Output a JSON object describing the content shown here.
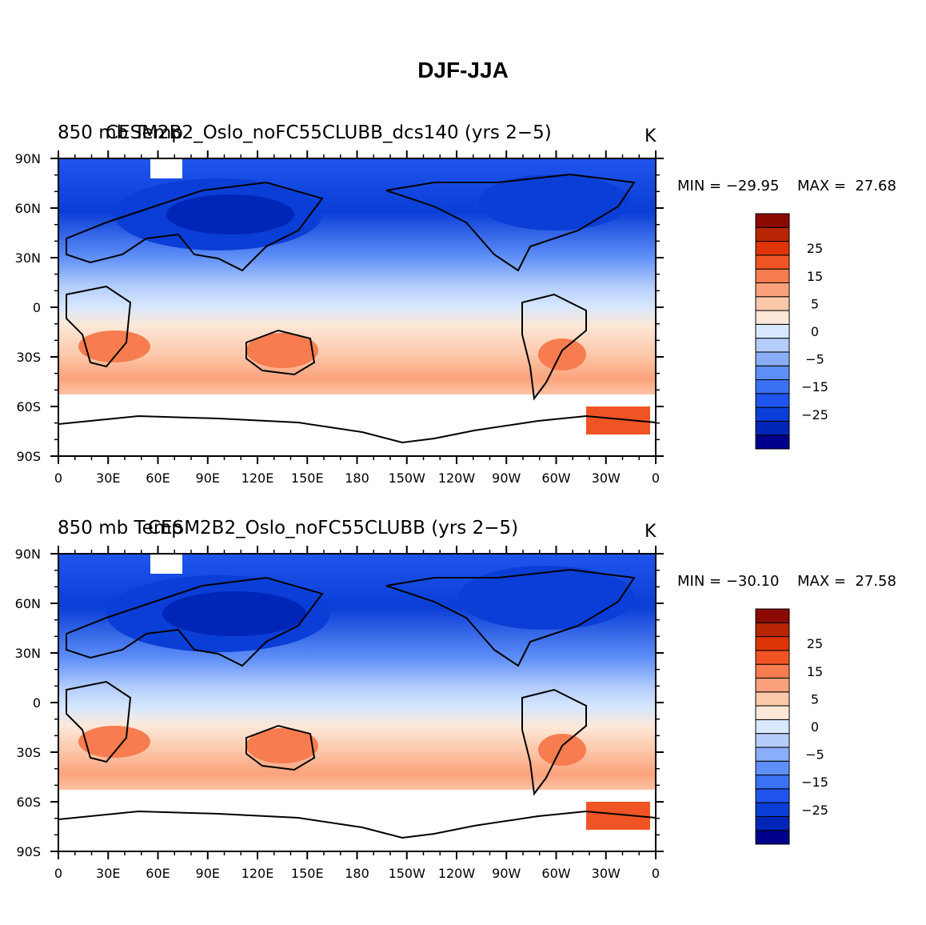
{
  "page": {
    "title": "DJF-JJA"
  },
  "chart_data": [
    {
      "type": "heatmap",
      "panel": "top",
      "title_left": "850 mb Temp",
      "title_center": "CESM2B2_Oslo_noFC55CLUBB_dcs140 (yrs 2−5)",
      "units": "K",
      "min_label": "MIN = −29.95",
      "max_label": "MAX =  27.68",
      "min": -29.95,
      "max": 27.68,
      "x_ticks": [
        "0",
        "30E",
        "60E",
        "90E",
        "120E",
        "150E",
        "180",
        "150W",
        "120W",
        "90W",
        "60W",
        "30W",
        "0"
      ],
      "y_ticks": [
        "90N",
        "60N",
        "30N",
        "0",
        "30S",
        "60S",
        "90S"
      ],
      "xlim": [
        0,
        360
      ],
      "ylim": [
        -90,
        90
      ]
    },
    {
      "type": "heatmap",
      "panel": "bottom",
      "title_left": "850 mb Temp",
      "title_center": "CESM2B2_Oslo_noFC55CLUBB (yrs 2−5)",
      "units": "K",
      "min_label": "MIN = −30.10",
      "max_label": "MAX =  27.58",
      "min": -30.1,
      "max": 27.58,
      "x_ticks": [
        "0",
        "30E",
        "60E",
        "90E",
        "120E",
        "150E",
        "180",
        "150W",
        "120W",
        "90W",
        "60W",
        "30W",
        "0"
      ],
      "y_ticks": [
        "90N",
        "60N",
        "30N",
        "0",
        "30S",
        "60S",
        "90S"
      ],
      "xlim": [
        0,
        360
      ],
      "ylim": [
        -90,
        90
      ]
    }
  ],
  "colorbar": {
    "levels": [
      -35,
      -30,
      -25,
      -20,
      -15,
      -10,
      -5,
      -2,
      0,
      2,
      5,
      10,
      15,
      20,
      25,
      30,
      35
    ],
    "colors": [
      "#00008a",
      "#0026b8",
      "#0a3ed6",
      "#1f55ee",
      "#3b71f5",
      "#5e8ef7",
      "#8aaef9",
      "#b4cdfb",
      "#d8e8fd",
      "#fde8d8",
      "#fcc8aa",
      "#fba27c",
      "#f77c50",
      "#f05424",
      "#de3508",
      "#b82504",
      "#8a0a00"
    ],
    "labels": [
      "25",
      "15",
      "5",
      "0",
      "−5",
      "−15",
      "−25"
    ],
    "label_levels": [
      25,
      15,
      5,
      0,
      -5,
      -15,
      -25
    ]
  },
  "colors": {
    "land_outline": "#000000",
    "missing": "#ffffff"
  }
}
